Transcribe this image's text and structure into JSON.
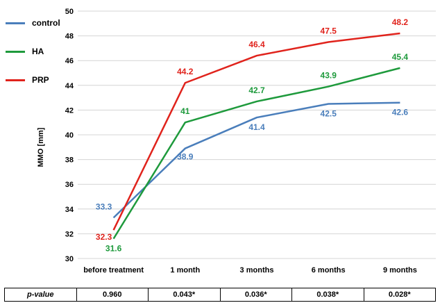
{
  "chart_data": {
    "type": "line",
    "ylabel": "MMO [mm]",
    "xlabel": "",
    "ylim": [
      30,
      50
    ],
    "yticks": [
      30,
      32,
      34,
      36,
      38,
      40,
      42,
      44,
      46,
      48,
      50
    ],
    "grid": true,
    "legend_position": "left",
    "categories": [
      "before treatment",
      "1 month",
      "3 months",
      "6 months",
      "9 months"
    ],
    "series": [
      {
        "name": "control",
        "color": "#4a7ebb",
        "values": [
          33.3,
          38.9,
          41.4,
          42.5,
          42.6
        ]
      },
      {
        "name": "HA",
        "color": "#1e9a3c",
        "values": [
          31.6,
          41,
          42.7,
          43.9,
          45.4
        ]
      },
      {
        "name": "PRP",
        "color": "#e0231c",
        "values": [
          32.3,
          44.2,
          46.4,
          47.5,
          48.2
        ]
      }
    ]
  },
  "pvalue_table": {
    "label": "p-value",
    "values": [
      "0.960",
      "0.043*",
      "0.036*",
      "0.038*",
      "0.028*"
    ]
  }
}
